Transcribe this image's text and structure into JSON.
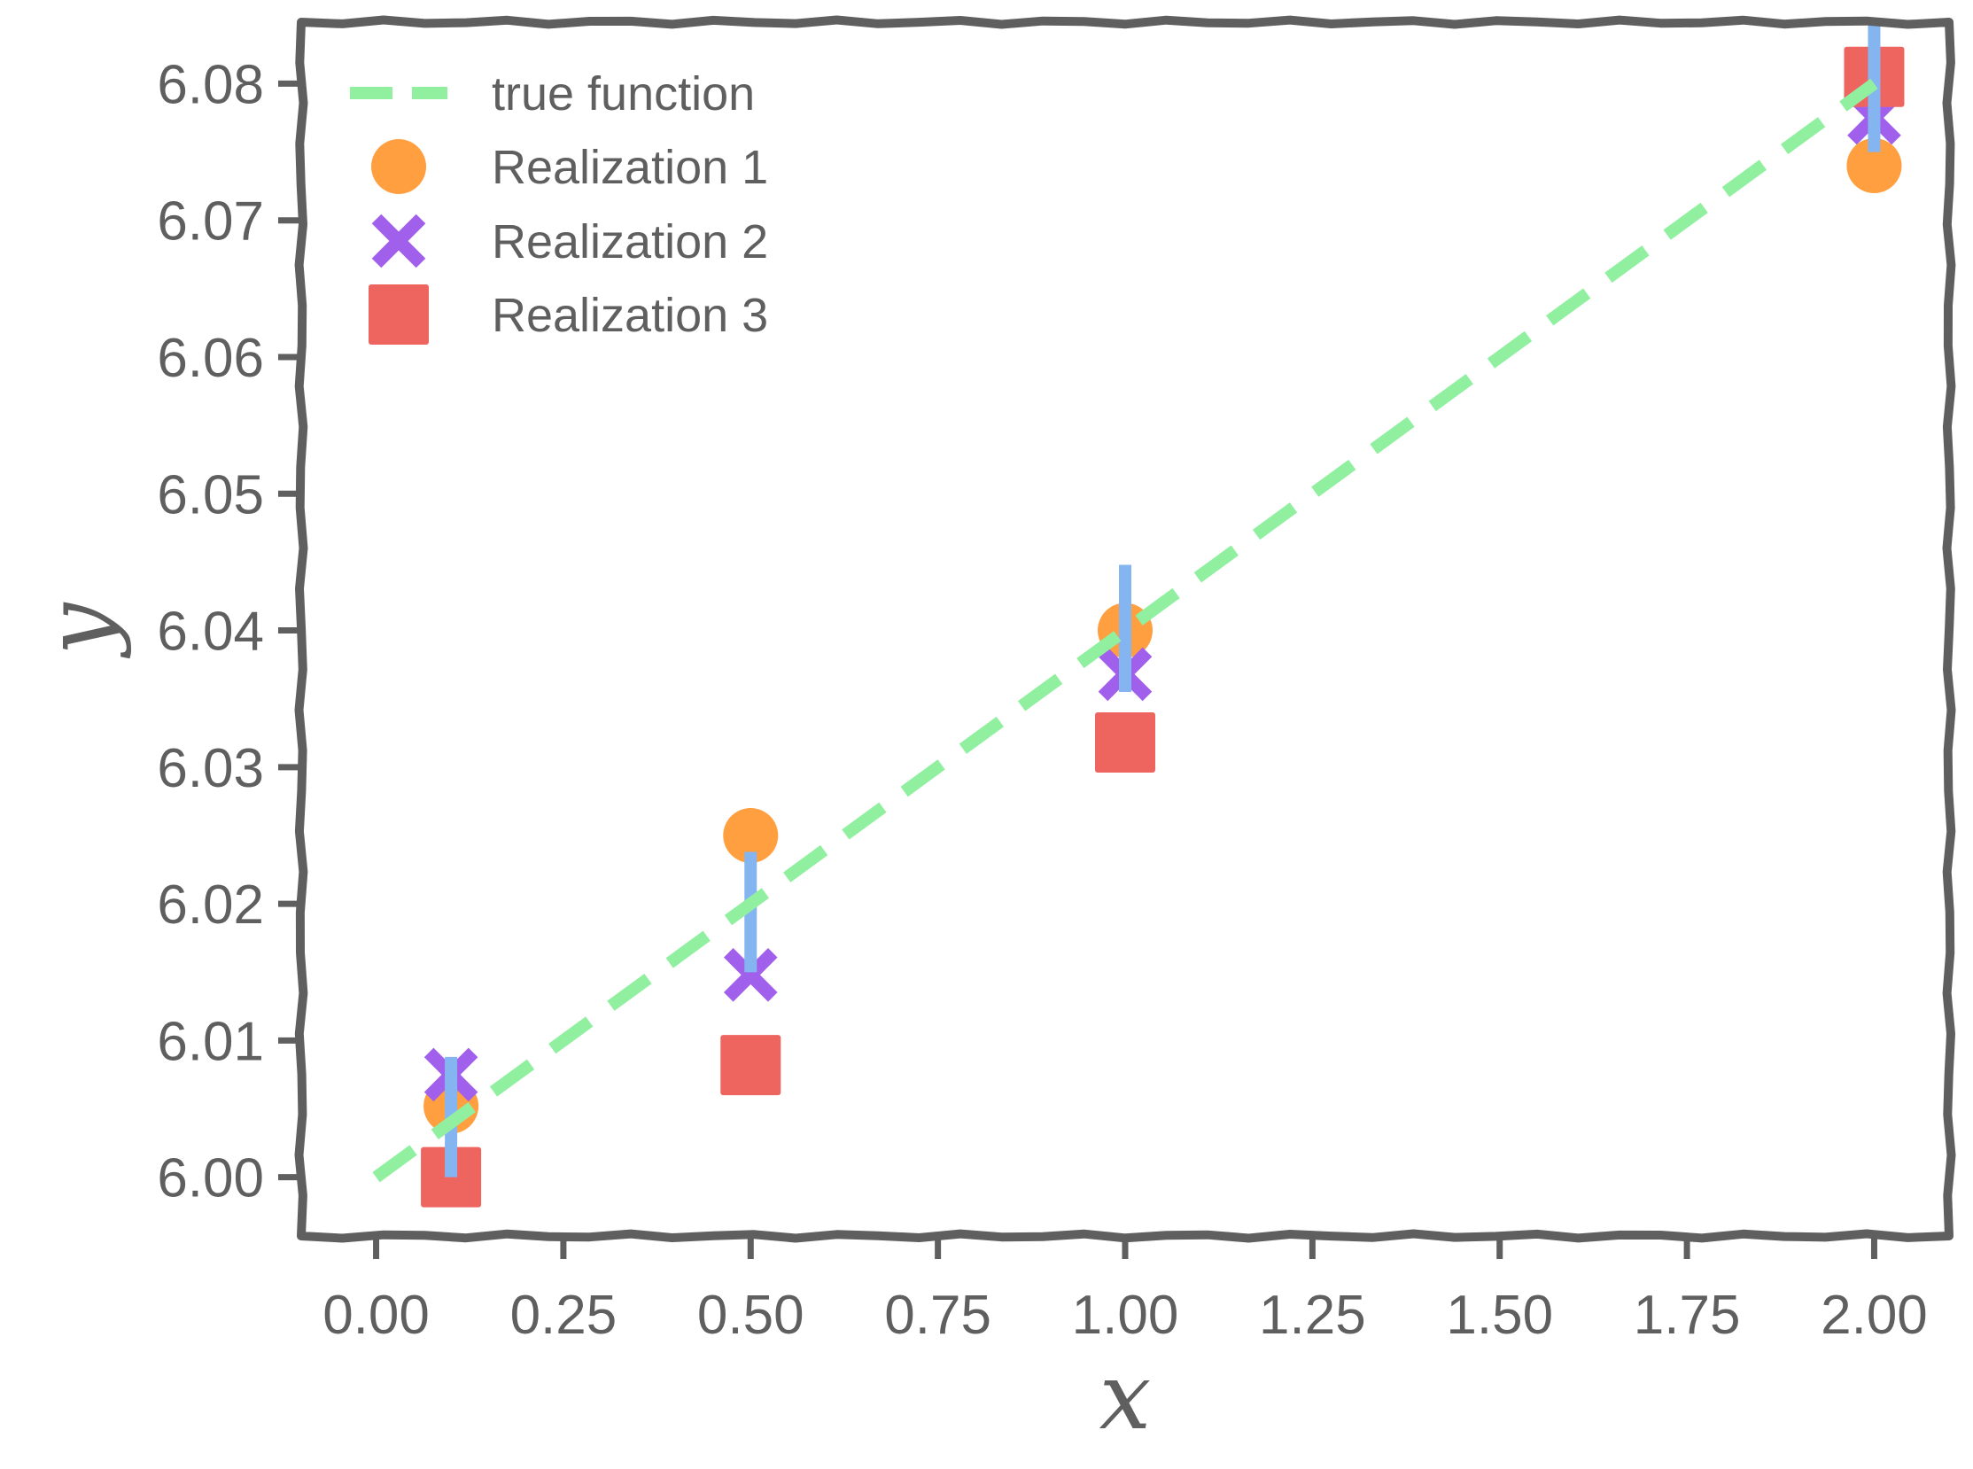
{
  "chart_data": {
    "type": "scatter",
    "title": "",
    "xlabel": "x",
    "ylabel": "y",
    "xlim": [
      -0.1,
      2.1
    ],
    "ylim": [
      5.9957,
      6.0845
    ],
    "x_ticks": [
      0.0,
      0.25,
      0.5,
      0.75,
      1.0,
      1.25,
      1.5,
      1.75,
      2.0
    ],
    "x_tick_labels": [
      "0.00",
      "0.25",
      "0.50",
      "0.75",
      "1.00",
      "1.25",
      "1.50",
      "1.75",
      "2.00"
    ],
    "y_ticks": [
      6.0,
      6.01,
      6.02,
      6.03,
      6.04,
      6.05,
      6.06,
      6.07,
      6.08
    ],
    "y_tick_labels": [
      "6.00",
      "6.01",
      "6.02",
      "6.03",
      "6.04",
      "6.05",
      "6.06",
      "6.07",
      "6.08"
    ],
    "grid": false,
    "legend_position": "top-left",
    "true_function": {
      "name": "true function",
      "x": [
        0.0,
        2.0
      ],
      "y": [
        6.0,
        6.08
      ],
      "color": "#90f0a0",
      "style": "dashed"
    },
    "series": [
      {
        "name": "Realization 1",
        "marker": "circle",
        "color": "#ff9f40",
        "x": [
          0.1,
          0.5,
          1.0,
          2.0
        ],
        "y": [
          6.0052,
          6.025,
          6.04,
          6.074
        ]
      },
      {
        "name": "Realization 2",
        "marker": "x",
        "color": "#a160eb",
        "x": [
          0.1,
          0.5,
          1.0,
          2.0
        ],
        "y": [
          6.0075,
          6.0148,
          6.0368,
          6.0775
        ]
      },
      {
        "name": "Realization 3",
        "marker": "square",
        "color": "#ee6560",
        "x": [
          0.1,
          0.5,
          1.0,
          2.0
        ],
        "y": [
          6.0,
          6.0082,
          6.0318,
          6.0805
        ]
      }
    ],
    "vertical_segments": {
      "color": "#85b5f0",
      "x": [
        0.1,
        0.5,
        1.0,
        2.0
      ],
      "y_low": [
        6.0,
        6.015,
        6.0355,
        6.075
      ],
      "y_high": [
        6.0088,
        6.0238,
        6.0448,
        6.0848
      ]
    },
    "frame_color": "#5f5f5f"
  }
}
